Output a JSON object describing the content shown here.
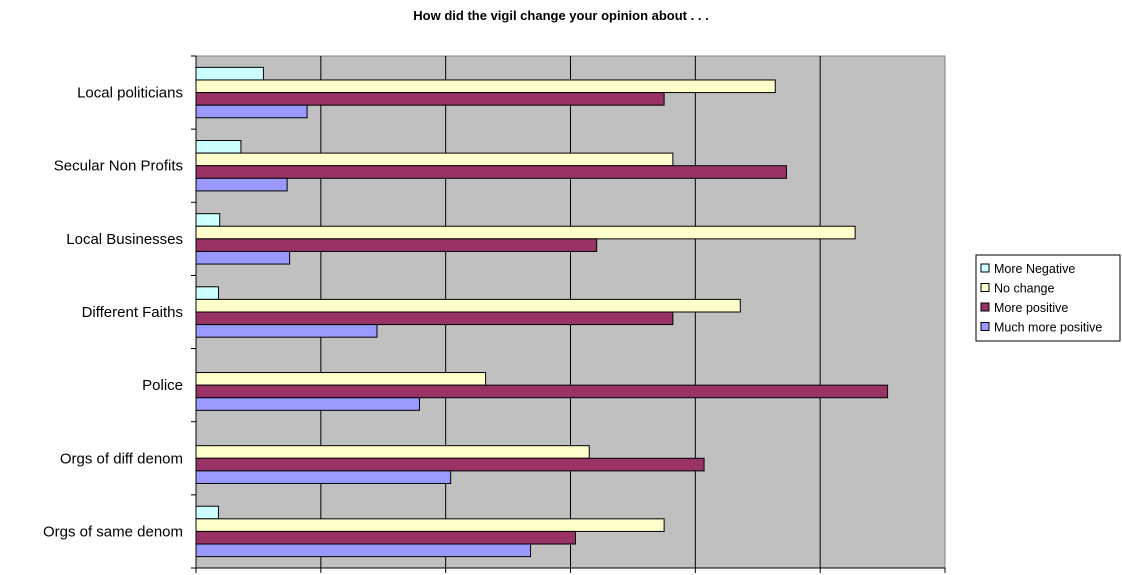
{
  "chart_data": {
    "type": "bar",
    "orientation": "horizontal",
    "title": "How did the vigil change your opinion about . . .",
    "xlabel": "",
    "ylabel": "",
    "xlim": [
      0,
      60
    ],
    "x_ticks": [
      "0",
      "10",
      "20",
      "30",
      "40",
      "50",
      "60"
    ],
    "grid": true,
    "legend_position": "right",
    "plot_background": "#C0C0C0",
    "categories": [
      "Local politicians",
      "Secular Non Profits",
      "Local Businesses",
      "Different Faiths",
      "Police",
      "Orgs of diff denom",
      "Orgs of same denom"
    ],
    "series": [
      {
        "name": "More Negative",
        "color": "#CCFFFF",
        "values": [
          5.4,
          3.6,
          1.9,
          1.8,
          0,
          0,
          1.8
        ]
      },
      {
        "name": "No change",
        "color": "#FFFFCC",
        "values": [
          46.4,
          38.2,
          52.8,
          43.6,
          23.2,
          31.5,
          37.5
        ]
      },
      {
        "name": "More positive",
        "color": "#993366",
        "values": [
          37.5,
          47.3,
          32.1,
          38.2,
          55.4,
          40.7,
          30.4
        ]
      },
      {
        "name": "Much more positive",
        "color": "#9999FF",
        "values": [
          8.9,
          7.3,
          7.5,
          14.5,
          17.9,
          20.4,
          26.8
        ]
      }
    ]
  }
}
